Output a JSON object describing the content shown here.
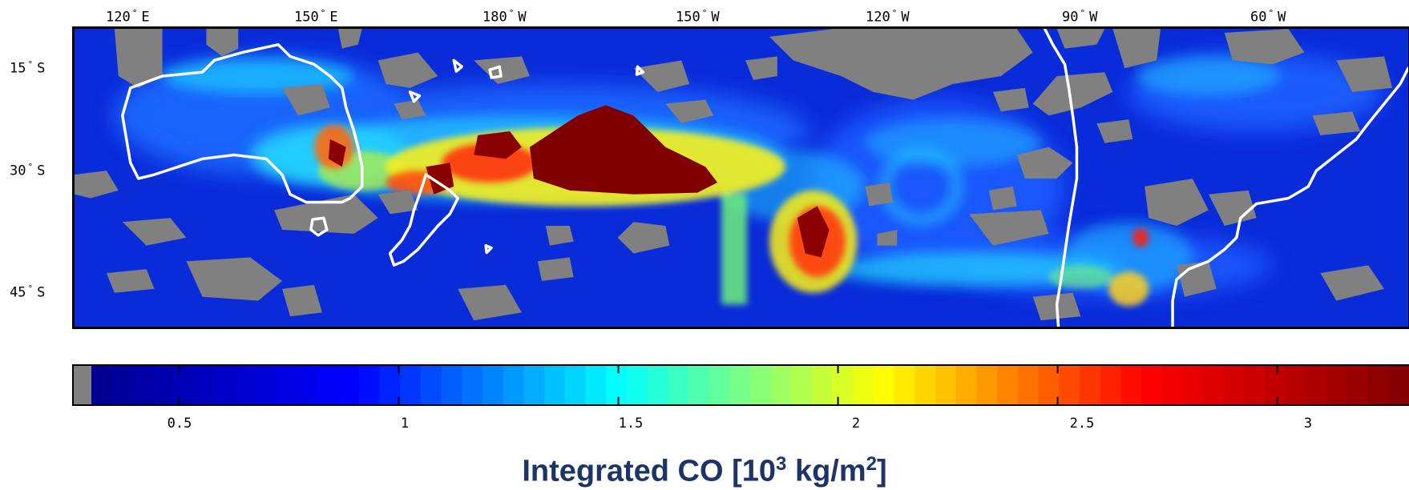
{
  "map": {
    "longitude_labels": [
      {
        "value": "120",
        "hemi": "E"
      },
      {
        "value": "150",
        "hemi": "E"
      },
      {
        "value": "180",
        "hemi": "W"
      },
      {
        "value": "150",
        "hemi": "W"
      },
      {
        "value": "120",
        "hemi": "W"
      },
      {
        "value": "90",
        "hemi": "W"
      },
      {
        "value": "60",
        "hemi": "W"
      }
    ],
    "latitude_labels": [
      {
        "value": "15",
        "hemi": "S"
      },
      {
        "value": "30",
        "hemi": "S"
      },
      {
        "value": "45",
        "hemi": "S"
      }
    ],
    "no_data_color": "#808080",
    "coastline_color": "#ffffff"
  },
  "colorbar": {
    "tick_labels": [
      "0.5",
      "1",
      "1.5",
      "2",
      "2.5",
      "3"
    ],
    "range": [
      0.3,
      3.3
    ],
    "colors": [
      "#00008f",
      "#0000ff",
      "#00ffff",
      "#ffff00",
      "#ff0000",
      "#800000"
    ]
  },
  "caption": {
    "prefix": "Integrated CO [10",
    "exp1": "3",
    "middle": " kg/m",
    "exp2": "2",
    "suffix": "]"
  }
}
